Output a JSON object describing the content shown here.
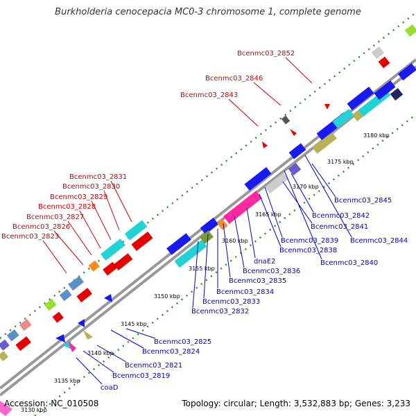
{
  "title": "Burkholderia cenocepacia MC0-3 chromosome 1, complete genome",
  "accession": "Accession: NC_010508",
  "summary": "Topology: circular; Length: 3,532,883 bp; Genes: 3,233",
  "colors": {
    "label_top": "#cc0000",
    "label_bottom": "#0000cc",
    "tick": "#2a8a2a",
    "backbone": "#a0a0a0"
  },
  "kbp_labels": [
    "3130 kbp",
    "3135 kbp",
    "3140 kbp",
    "3145 kbp",
    "3150 kbp",
    "3155 kbp",
    "3160 kbp",
    "3165 kbp",
    "3170 kbp",
    "3175 kbp",
    "3180 kbp"
  ],
  "top_labels": [
    "Bcenmc03_2852",
    "Bcenmc03_2846",
    "Bcenmc03_2843",
    "Bcenmc03_2831",
    "Bcenmc03_2830",
    "Bcenmc03_2829",
    "Bcenmc03_2828",
    "Bcenmc03_2827",
    "Bcenmc03_2826",
    "Bcenmc03_2823"
  ],
  "bottom_labels": [
    "Bcenmc03_2845",
    "Bcenmc03_2842",
    "Bcenmc03_2841",
    "Bcenmc03_2844",
    "Bcenmc03_2839",
    "Bcenmc03_2838",
    "Bcenmc03_2840",
    "dnaE2",
    "Bcenmc03_2836",
    "Bcenmc03_2835",
    "Bcenmc03_2834",
    "Bcenmc03_2833",
    "Bcenmc03_2832",
    "Bcenmc03_2825",
    "Bcenmc03_2824",
    "Bcenmc03_2821",
    "Bcenmc03_2819",
    "coaD"
  ]
}
